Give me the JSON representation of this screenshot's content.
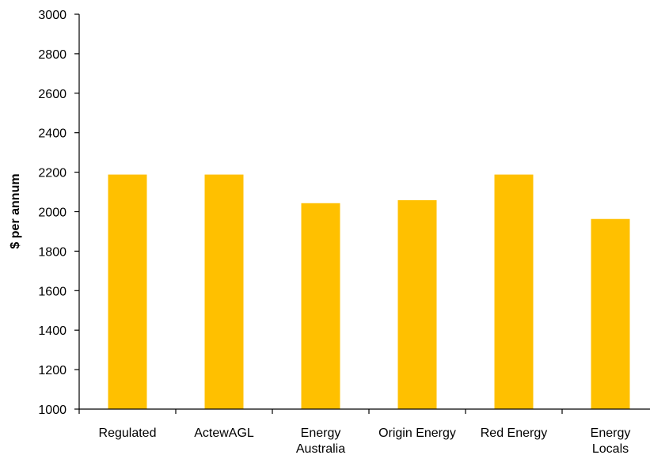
{
  "chart_data": {
    "type": "bar",
    "title": "",
    "xlabel": "",
    "ylabel": "$ per annum",
    "ylim": [
      1000,
      3000
    ],
    "yticks": [
      1000,
      1200,
      1400,
      1600,
      1800,
      2000,
      2200,
      2400,
      2600,
      2800,
      3000
    ],
    "categories": [
      [
        "Regulated"
      ],
      [
        "ActewAGL"
      ],
      [
        "Energy",
        "Australia"
      ],
      [
        "Origin Energy"
      ],
      [
        "Red Energy"
      ],
      [
        "Energy",
        "Locals"
      ]
    ],
    "values": [
      2188,
      2188,
      2043,
      2058,
      2188,
      1963
    ],
    "grid": false,
    "legend": "none",
    "colors": {
      "bar": "#FFC000",
      "axis": "#000000",
      "text": "#000000"
    }
  }
}
